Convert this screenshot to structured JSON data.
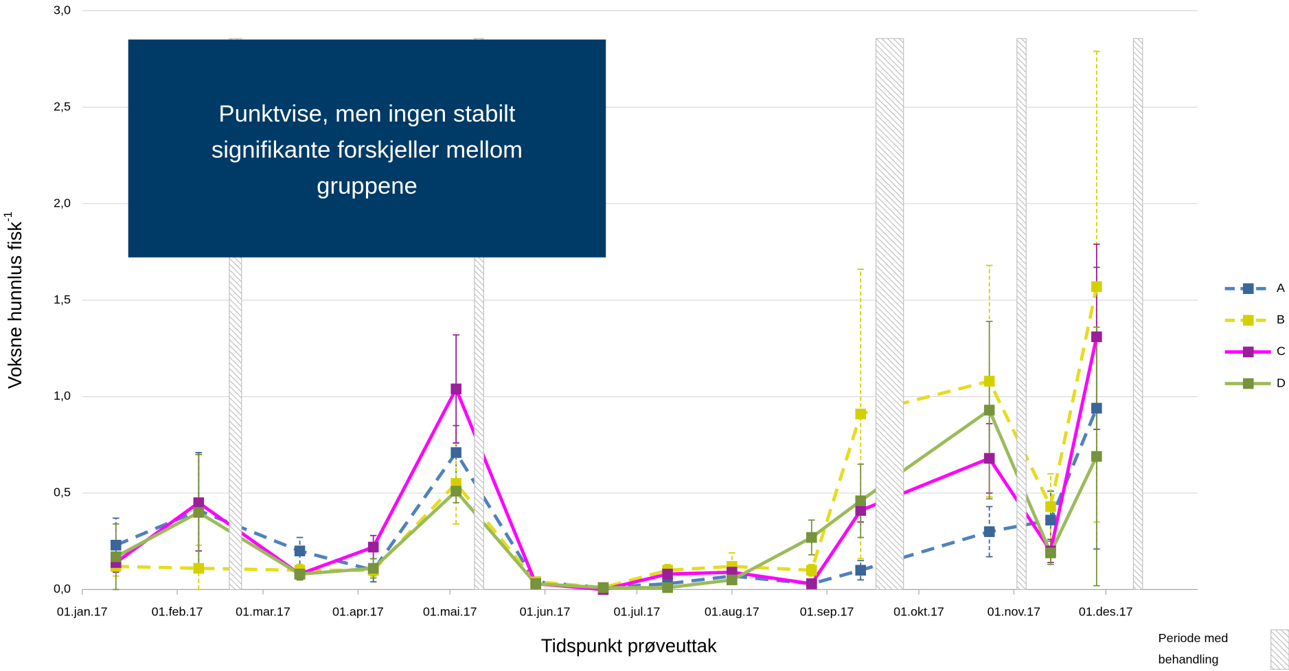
{
  "chart_data": {
    "type": "line",
    "xlabel": "Tidspunkt prøveuttak",
    "ylabel": "Voksne hunnlus fisk",
    "ylabel_sup": "-1",
    "x": [
      "2017-01-12",
      "2017-02-08",
      "2017-03-13",
      "2017-04-06",
      "2017-05-03",
      "2017-05-29",
      "2017-06-20",
      "2017-07-11",
      "2017-08-01",
      "2017-08-27",
      "2017-09-12",
      "2017-10-24",
      "2017-11-13",
      "2017-11-28"
    ],
    "xlim": [
      "2017-01-01",
      "2017-12-31"
    ],
    "xticks": [
      {
        "value": "2017-01-01",
        "label": "01.jan.17"
      },
      {
        "value": "2017-02-01",
        "label": "01.feb.17"
      },
      {
        "value": "2017-03-01",
        "label": "01.mar.17"
      },
      {
        "value": "2017-04-01",
        "label": "01.apr.17"
      },
      {
        "value": "2017-05-01",
        "label": "01.mai.17"
      },
      {
        "value": "2017-06-01",
        "label": "01.jun.17"
      },
      {
        "value": "2017-07-01",
        "label": "01.jul.17"
      },
      {
        "value": "2017-08-01",
        "label": "01.aug.17"
      },
      {
        "value": "2017-09-01",
        "label": "01.sep.17"
      },
      {
        "value": "2017-10-01",
        "label": "01.okt.17"
      },
      {
        "value": "2017-11-01",
        "label": "01.nov.17"
      },
      {
        "value": "2017-12-01",
        "label": "01.des.17"
      }
    ],
    "ylim": [
      0,
      3
    ],
    "yticks": [
      {
        "value": 0,
        "label": "0,0"
      },
      {
        "value": 0.5,
        "label": "0,5"
      },
      {
        "value": 1,
        "label": "1,0"
      },
      {
        "value": 1.5,
        "label": "1,5"
      },
      {
        "value": 2,
        "label": "2,0"
      },
      {
        "value": 2.5,
        "label": "2,5"
      },
      {
        "value": 3,
        "label": "3,0"
      }
    ],
    "grid": true,
    "legend": "right",
    "series": [
      {
        "name": "A",
        "color": "#4f81bd",
        "marker_color": "#3a6699",
        "dashed": true,
        "values": [
          0.23,
          0.41,
          0.2,
          0.1,
          0.71,
          0.04,
          0.01,
          0.03,
          0.07,
          0.03,
          0.1,
          0.3,
          0.36,
          0.94
        ],
        "errors": [
          0.14,
          0.3,
          0.07,
          0.06,
          0.14,
          0.02,
          0.01,
          0.02,
          0.02,
          0.02,
          0.05,
          0.13,
          0.15,
          0.73
        ]
      },
      {
        "name": "B",
        "color": "#e6dc1e",
        "marker_color": "#d4d000",
        "dashed": true,
        "values": [
          0.12,
          0.11,
          0.1,
          0.1,
          0.55,
          0.04,
          0.01,
          0.1,
          0.12,
          0.1,
          0.91,
          1.08,
          0.43,
          1.57
        ],
        "errors": [
          0.05,
          0.12,
          0.03,
          0.03,
          0.21,
          0.01,
          0.01,
          0.03,
          0.07,
          0.03,
          0.75,
          0.6,
          0.17,
          1.22
        ]
      },
      {
        "name": "C",
        "color": "#ff00ff",
        "marker_color": "#9b1e9b",
        "dashed": false,
        "values": [
          0.14,
          0.45,
          0.08,
          0.22,
          1.04,
          0.03,
          0.0,
          0.08,
          0.09,
          0.03,
          0.41,
          0.68,
          0.2,
          1.31
        ],
        "errors": [
          0.05,
          0.25,
          0.03,
          0.06,
          0.28,
          0.01,
          0.01,
          0.04,
          0.02,
          0.01,
          0.06,
          0.18,
          0.06,
          0.48
        ]
      },
      {
        "name": "D",
        "color": "#9bbb59",
        "marker_color": "#77933c",
        "dashed": false,
        "values": [
          0.17,
          0.4,
          0.08,
          0.11,
          0.51,
          0.03,
          0.01,
          0.01,
          0.05,
          0.27,
          0.46,
          0.93,
          0.19,
          0.69
        ],
        "errors": [
          0.17,
          0.3,
          0.03,
          0.05,
          0.06,
          0.01,
          0.01,
          0.01,
          0.02,
          0.09,
          0.19,
          0.46,
          0.06,
          0.67
        ]
      }
    ],
    "treatment_periods": [
      {
        "start": "2017-02-18",
        "end": "2017-02-22"
      },
      {
        "start": "2017-05-09",
        "end": "2017-05-12"
      },
      {
        "start": "2017-09-17",
        "end": "2017-09-26"
      },
      {
        "start": "2017-11-02",
        "end": "2017-11-05"
      },
      {
        "start": "2017-12-10",
        "end": "2017-12-13"
      }
    ],
    "treatment_legend": [
      "Periode med",
      "behandling"
    ],
    "annotation": [
      "Punktvise, men ingen stabilt",
      "signifikante forskjeller mellom",
      "gruppene"
    ]
  }
}
